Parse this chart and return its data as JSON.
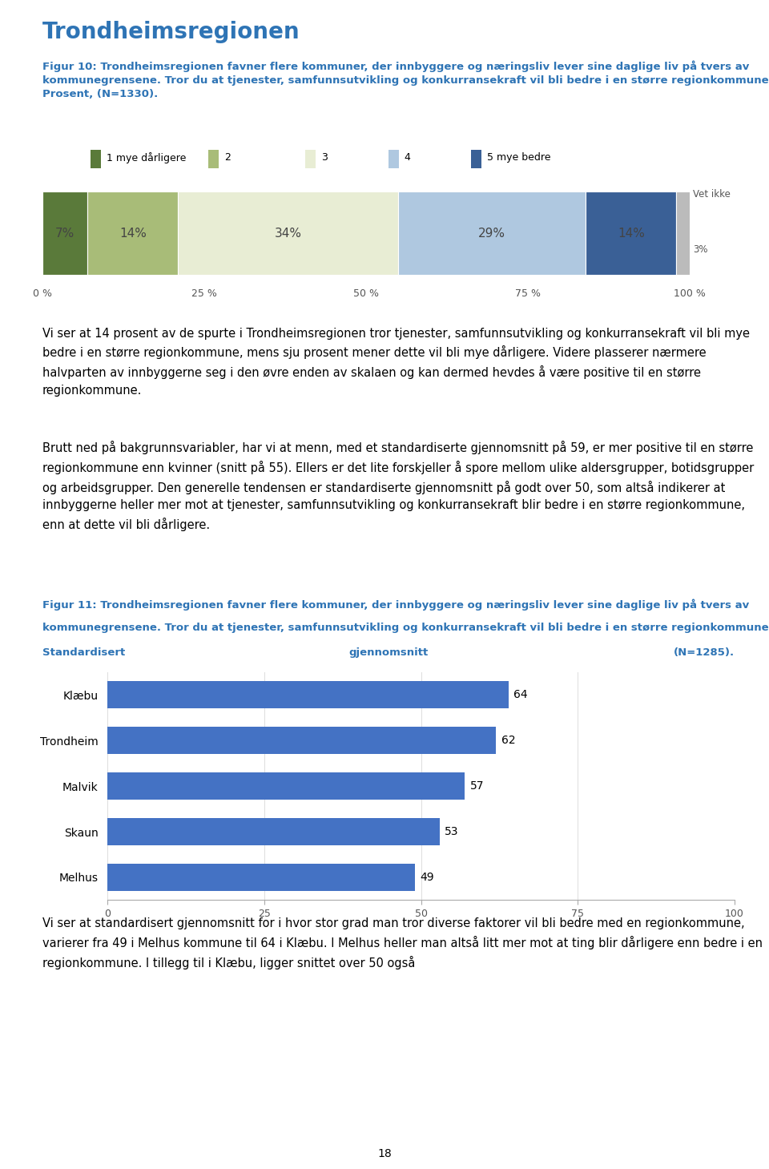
{
  "title": "Trondheimsregionen",
  "title_color": "#2E74B5",
  "fig10_caption_line1": "Figur 10: Trondheimsregionen favner flere kommuner, der innbyggere og næringsliv lever sine daglige liv på tvers av",
  "fig10_caption_line2": "kommunegrensene. Tror du at tjenester, samfunnsutvikling og konkurransekraft vil bli bedre i en større regionkommune?",
  "fig10_caption_line3": "Prosent, (N=1330).",
  "fig10_caption_color": "#2E74B5",
  "bar1_segments": [
    7,
    14,
    34,
    29,
    14,
    3
  ],
  "bar1_colors": [
    "#5A7A3A",
    "#A8BC78",
    "#E8EDD4",
    "#AFC8E0",
    "#3A6096",
    "#BBBBBB"
  ],
  "bar1_labels": [
    "7%",
    "14%",
    "34%",
    "29%",
    "14%",
    ""
  ],
  "legend_labels": [
    "1 mye dårligere",
    "2",
    "3",
    "4",
    "5 mye bedre"
  ],
  "legend_colors": [
    "#5A7A3A",
    "#A8BC78",
    "#E8EDD4",
    "#AFC8E0",
    "#3A6096"
  ],
  "xaxis_ticks": [
    0,
    25,
    50,
    75,
    100
  ],
  "xaxis_labels": [
    "0 %",
    "25 %",
    "50 %",
    "75 %",
    "100 %"
  ],
  "text1": "Vi ser at 14 prosent av de spurte i Trondheimsregionen tror tjenester, samfunnsutvikling og konkurransekraft vil bli mye bedre i en større regionkommune, mens sju prosent mener dette vil bli mye dårligere. Videre plasserer nærmere halvparten av innbyggerne seg i den øvre enden av skalaen og kan dermed hevdes å være positive til en større regionkommune.",
  "text2": "Brutt ned på bakgrunnsvariabler, har vi at menn, med et standardiserte gjennomsnitt på 59, er mer positive til en større regionkommune enn kvinner (snitt på 55). Ellers er det lite forskjeller å spore mellom ulike aldersgrupper, botidsgrupper og arbeidsgrupper. Den generelle tendensen er standardiserte gjennomsnitt på godt over 50, som altså indikerer at innbyggerne heller mer mot at tjenester, samfunnsutvikling og konkurransekraft blir bedre i en større regionkommune, enn at dette vil bli dårligere.",
  "fig11_caption_line1": "Figur 11: Trondheimsregionen favner flere kommuner, der innbyggere og næringsliv lever sine daglige liv på tvers av",
  "fig11_caption_line2": "kommunegrensene. Tror du at tjenester, samfunnsutvikling og konkurransekraft vil bli bedre i en større regionkommune?",
  "fig11_caption_line3_left": "Standardisert",
  "fig11_caption_line3_center": "gjennomsnitt",
  "fig11_caption_line3_right": "(N=1285).",
  "fig11_caption_color": "#2E74B5",
  "fig11_categories": [
    "Klæbu",
    "Trondheim",
    "Malvik",
    "Skaun",
    "Melhus"
  ],
  "fig11_values": [
    64,
    62,
    57,
    53,
    49
  ],
  "fig11_bar_color": "#4472C4",
  "text3": "Vi ser at standardisert gjennomsnitt for i hvor stor grad man tror diverse faktorer vil bli bedre med en regionkommune, varierer fra 49 i Melhus kommune til 64 i Klæbu. I Melhus heller man altså litt mer mot at ting blir dårligere enn bedre i en regionkommune. I tillegg til i Klæbu, ligger snittet over 50 også",
  "page_number": "18",
  "background_color": "#FFFFFF",
  "text_color": "#000000",
  "body_font_size": 10.5,
  "caption_font_size": 9.5,
  "title_fontsize": 20
}
